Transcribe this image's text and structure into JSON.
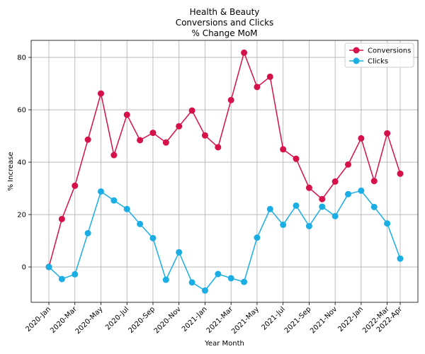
{
  "chart_data": {
    "type": "line",
    "title_lines": [
      "Health & Beauty",
      "Conversions and Clicks",
      "% Change MoM"
    ],
    "xlabel": "Year Month",
    "ylabel": "% Increase",
    "x": [
      "2020-Jan",
      "2020-Feb",
      "2020-Mar",
      "2020-Apr",
      "2020-May",
      "2020-Jun",
      "2020-Jul",
      "2020-Aug",
      "2020-Sep",
      "2020-Oct",
      "2020-Nov",
      "2020-Dec",
      "2021-Jan",
      "2021-Feb",
      "2021-Mar",
      "2021-Apr",
      "2021-May",
      "2021-Jun",
      "2021-Jul",
      "2021-Aug",
      "2021-Sep",
      "2021-Oct",
      "2021-Nov",
      "2021-Dec",
      "2022-Jan",
      "2022-Feb",
      "2022-Mar",
      "2022-Apr"
    ],
    "xticks": [
      "2020-Jan",
      "2020-Mar",
      "2020-May",
      "2020-Jul",
      "2020-Sep",
      "2020-Nov",
      "2021-Jan",
      "2021-Mar",
      "2021-May",
      "2021-Jul",
      "2021-Sep",
      "2021-Nov",
      "2022-Jan",
      "2022-Mar",
      "2022-Apr"
    ],
    "yticks": [
      0,
      20,
      40,
      60,
      80
    ],
    "ylim": [
      -13.5,
      86.5
    ],
    "grid": true,
    "legend_position": "top-right",
    "series": [
      {
        "name": "Conversions",
        "color": "#d6114a",
        "values": [
          0,
          18.3,
          31.0,
          48.6,
          66.2,
          42.7,
          58.1,
          48.4,
          51.2,
          47.5,
          53.7,
          59.7,
          50.2,
          45.7,
          63.7,
          81.8,
          68.7,
          72.6,
          44.9,
          41.3,
          30.2,
          25.9,
          32.6,
          39.1,
          49.1,
          32.8,
          51.0,
          35.6
        ]
      },
      {
        "name": "Clicks",
        "color": "#1aaee5",
        "values": [
          0,
          -4.6,
          -2.8,
          12.9,
          28.8,
          25.4,
          22.1,
          16.4,
          11.0,
          -4.9,
          5.6,
          -5.9,
          -9.0,
          -2.7,
          -4.3,
          -5.7,
          11.2,
          22.1,
          16.1,
          23.4,
          15.6,
          23.0,
          19.4,
          27.8,
          29.1,
          22.9,
          16.6,
          3.2
        ]
      }
    ]
  }
}
